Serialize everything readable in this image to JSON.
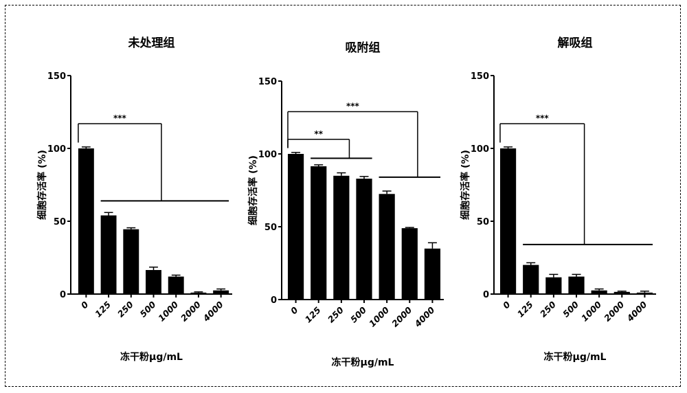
{
  "chart_data": [
    {
      "type": "bar",
      "title": "未处理组",
      "ylabel": "细胞存活率 (%)",
      "xlabel": "冻干粉μg/mL",
      "categories": [
        "0",
        "125",
        "250",
        "500",
        "1000",
        "2000",
        "4000"
      ],
      "values": [
        100,
        54,
        44.5,
        16.5,
        12,
        1,
        2.5
      ],
      "errors": [
        1,
        2,
        1,
        2,
        1,
        0.5,
        1
      ],
      "ylim": [
        0,
        150
      ],
      "yticks": [
        0,
        50,
        100,
        150
      ],
      "significance": [
        {
          "label": "***",
          "from": 0,
          "to": 3,
          "group_from": 1,
          "group_to": 6,
          "bracket_y": 117,
          "group_y": 64
        }
      ]
    },
    {
      "type": "bar",
      "title": "吸附组",
      "ylabel": "细胞存活率 (%)",
      "xlabel": "冻干粉μg/mL",
      "categories": [
        "0",
        "125",
        "250",
        "500",
        "1000",
        "2000",
        "4000"
      ],
      "values": [
        100,
        91.5,
        85,
        83,
        72.5,
        49,
        35
      ],
      "errors": [
        1,
        1,
        2,
        1.5,
        2,
        0.5,
        4
      ],
      "ylim": [
        0,
        150
      ],
      "yticks": [
        0,
        50,
        100,
        150
      ],
      "significance": [
        {
          "label": "**",
          "from": 0,
          "to": 2,
          "group_from": 1,
          "group_to": 3,
          "bracket_y": 110,
          "group_y": 97
        },
        {
          "label": "***",
          "from": 0,
          "to": 5,
          "group_from": 4,
          "group_to": 6,
          "bracket_y": 129,
          "group_y": 84
        }
      ]
    },
    {
      "type": "bar",
      "title": "解吸组",
      "ylabel": "细胞存活率 (%)",
      "xlabel": "冻干粉μg/mL",
      "categories": [
        "0",
        "125",
        "250",
        "500",
        "1000",
        "2000",
        "4000"
      ],
      "values": [
        100,
        20,
        11.5,
        12,
        2.5,
        1.5,
        1
      ],
      "errors": [
        1,
        1.5,
        2,
        1.5,
        1,
        0.5,
        1
      ],
      "ylim": [
        0,
        150
      ],
      "yticks": [
        0,
        50,
        100,
        150
      ],
      "significance": [
        {
          "label": "***",
          "from": 0,
          "to": 3,
          "group_from": 1,
          "group_to": 6,
          "bracket_y": 117,
          "group_y": 34
        }
      ]
    }
  ]
}
